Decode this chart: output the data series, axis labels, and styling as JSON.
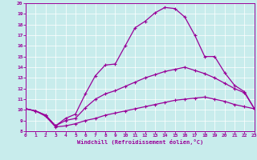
{
  "xlabel": "Windchill (Refroidissement éolien,°C)",
  "xlim": [
    0,
    23
  ],
  "ylim": [
    8,
    20
  ],
  "xticks": [
    0,
    1,
    2,
    3,
    4,
    5,
    6,
    7,
    8,
    9,
    10,
    11,
    12,
    13,
    14,
    15,
    16,
    17,
    18,
    19,
    20,
    21,
    22,
    23
  ],
  "yticks": [
    8,
    9,
    10,
    11,
    12,
    13,
    14,
    15,
    16,
    17,
    18,
    19,
    20
  ],
  "bg_color": "#c8ecec",
  "line_color": "#990099",
  "line1_x": [
    0,
    1,
    2,
    3,
    4,
    5,
    6,
    7,
    8,
    9,
    10,
    11,
    12,
    13,
    14,
    15,
    16,
    17,
    18,
    19,
    20,
    21,
    22,
    23
  ],
  "line1_y": [
    10.1,
    9.9,
    9.5,
    8.5,
    9.2,
    9.6,
    11.5,
    13.2,
    14.2,
    14.3,
    16.0,
    17.7,
    18.3,
    19.1,
    19.6,
    19.5,
    18.7,
    17.0,
    15.0,
    15.0,
    13.5,
    12.3,
    11.7,
    10.1
  ],
  "line2_x": [
    0,
    1,
    2,
    3,
    4,
    5,
    6,
    7,
    8,
    9,
    10,
    11,
    12,
    13,
    14,
    15,
    16,
    17,
    18,
    19,
    20,
    21,
    22,
    23
  ],
  "line2_y": [
    10.1,
    9.9,
    9.5,
    8.5,
    9.0,
    9.2,
    10.2,
    11.0,
    11.5,
    11.8,
    12.2,
    12.6,
    13.0,
    13.3,
    13.6,
    13.8,
    14.0,
    13.7,
    13.4,
    13.0,
    12.5,
    12.0,
    11.6,
    10.1
  ],
  "line3_x": [
    0,
    1,
    2,
    3,
    4,
    5,
    6,
    7,
    8,
    9,
    10,
    11,
    12,
    13,
    14,
    15,
    16,
    17,
    18,
    19,
    20,
    21,
    22,
    23
  ],
  "line3_y": [
    10.1,
    9.9,
    9.4,
    8.4,
    8.5,
    8.7,
    9.0,
    9.2,
    9.5,
    9.7,
    9.9,
    10.1,
    10.3,
    10.5,
    10.7,
    10.9,
    11.0,
    11.1,
    11.2,
    11.0,
    10.8,
    10.5,
    10.3,
    10.1
  ]
}
